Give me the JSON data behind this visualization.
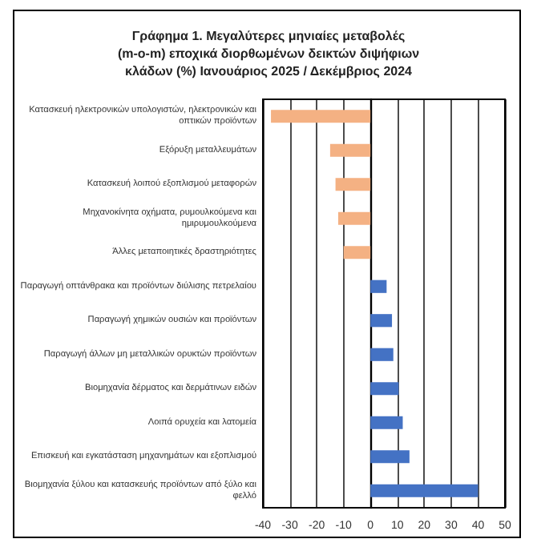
{
  "chart_data": {
    "type": "bar",
    "orientation": "horizontal",
    "title": "Γράφημα 1. Μεγαλύτερες μηνιαίες μεταβολές (m-o-m) εποχικά διορθωμένων δεικτών διψήφιων κλάδων (%) Ιανουάριος 2025 / Δεκέμβριος 2024",
    "categories": [
      "Κατασκευή ηλεκτρονικών υπολογιστών, ηλεκτρονικών και οπτικών προϊόντων",
      "Εξόρυξη μεταλλευμάτων",
      "Κατασκευή λοιπού εξοπλισμού μεταφορών",
      "Μηχανοκίνητα οχήματα, ρυμουλκούμενα και ημιρυμουλκούμενα",
      "Άλλες μεταποιητικές δραστηριότητες",
      "Παραγωγή οπτάνθρακα και προϊόντων διύλισης πετρελαίου",
      "Παραγωγή χημικών ουσιών και προϊόντων",
      "Παραγωγή άλλων μη μεταλλικών ορυκτών προϊόντων",
      "Βιομηχανία δέρματος και δερμάτινων ειδών",
      "Λοιπά ορυχεία και λατομεία",
      "Επισκευή και εγκατάσταση μηχανημάτων και εξοπλισμού",
      "Βιομηχανία ξύλου και κατασκευής προϊόντων από ξύλο και φελλό"
    ],
    "values": [
      -37,
      -15,
      -13,
      -12,
      -10,
      6,
      8,
      8.5,
      10.5,
      12,
      14.5,
      40
    ],
    "colors": [
      "#f4b183",
      "#f4b183",
      "#f4b183",
      "#f4b183",
      "#f4b183",
      "#4472c4",
      "#4472c4",
      "#4472c4",
      "#4472c4",
      "#4472c4",
      "#4472c4",
      "#4472c4"
    ],
    "xlim": [
      -40,
      50
    ],
    "xticks": [
      -40,
      -30,
      -20,
      -10,
      0,
      10,
      20,
      30,
      40,
      50
    ],
    "grid": "x"
  }
}
